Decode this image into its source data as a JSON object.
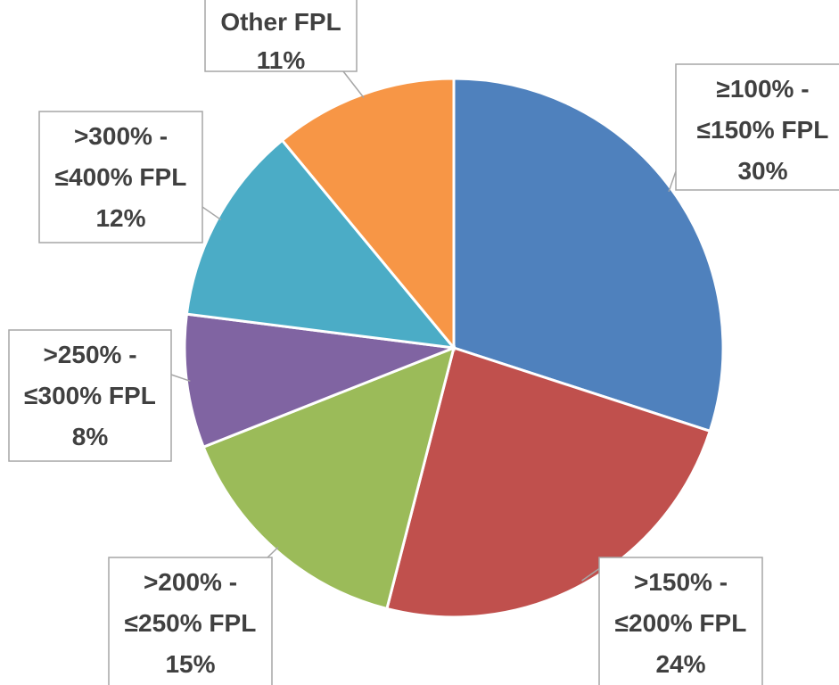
{
  "chart_data": {
    "type": "pie",
    "categories": [
      "≥100% - ≤150% FPL",
      ">150% - ≤200% FPL",
      ">200% - ≤250% FPL",
      ">250% - ≤300% FPL",
      ">300% - ≤400% FPL",
      "Other FPL"
    ],
    "values": [
      30,
      24,
      15,
      8,
      12,
      11
    ],
    "value_labels": [
      "30%",
      "24%",
      "15%",
      "8%",
      "12%",
      "11%"
    ],
    "colors": [
      "#4f81bd",
      "#c0504d",
      "#9bbb59",
      "#8064a2",
      "#4bacc6",
      "#f79646"
    ]
  }
}
